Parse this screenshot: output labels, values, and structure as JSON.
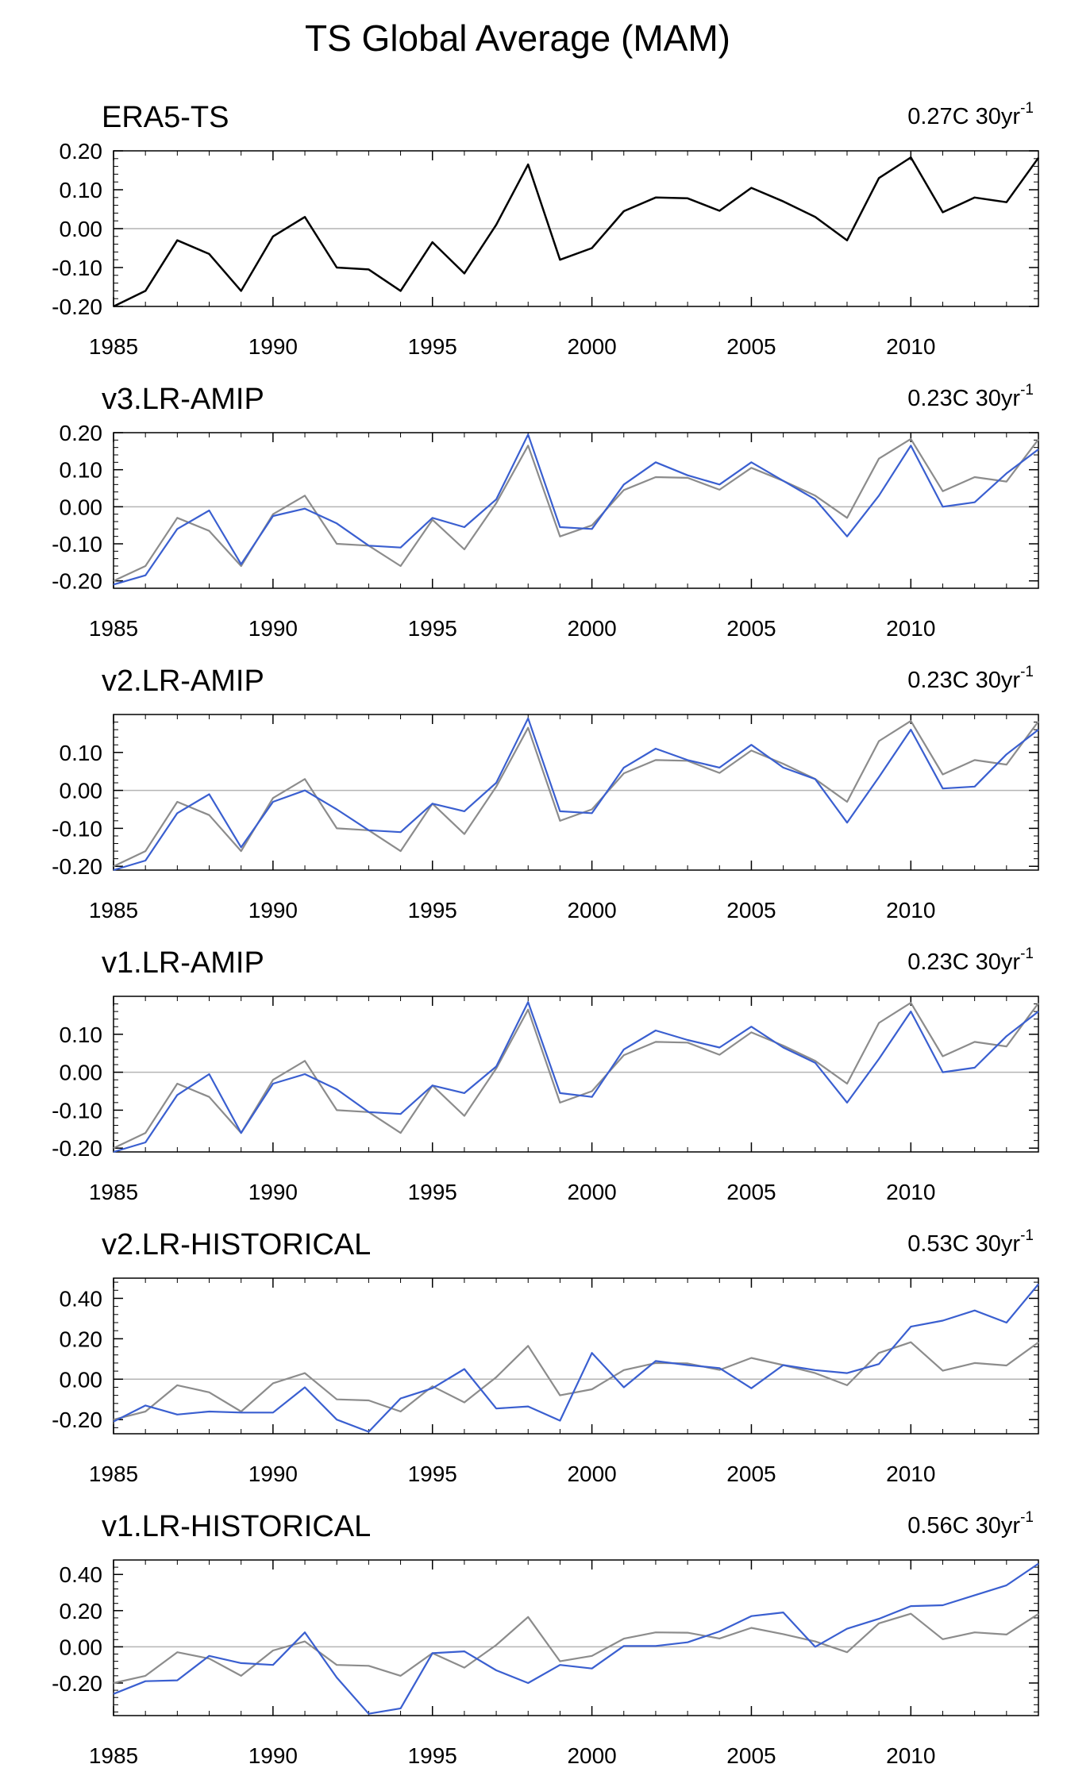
{
  "figure_title": "TS Global Average (MAM)",
  "colors": {
    "reference": "#000000",
    "reference_overlay": "#8c8c8c",
    "model": "#3a5fd0",
    "zero_line": "#b4b4b4",
    "axis": "#000000"
  },
  "chart_data": [
    {
      "type": "line",
      "title": "ERA5-TS",
      "trend_label": "0.27C 30yr",
      "trend_superscript": "-1",
      "ylim": [
        -0.2,
        0.2
      ],
      "yticks": [
        -0.2,
        -0.1,
        0.0,
        0.1,
        0.2
      ],
      "ytick_labels": [
        "-0.20",
        "-0.10",
        "0.00",
        "0.10",
        "0.20"
      ],
      "xlim": [
        1985,
        2014
      ],
      "xticks": [
        1985,
        1990,
        1995,
        2000,
        2005,
        2010
      ],
      "xtick_labels": [
        "1985",
        "1990",
        "1995",
        "2000",
        "2005",
        "2010"
      ],
      "x": [
        1985,
        1986,
        1987,
        1988,
        1989,
        1990,
        1991,
        1992,
        1993,
        1994,
        1995,
        1996,
        1997,
        1998,
        1999,
        2000,
        2001,
        2002,
        2003,
        2004,
        2005,
        2006,
        2007,
        2008,
        2009,
        2010,
        2011,
        2012,
        2013,
        2014
      ],
      "series": [
        {
          "name": "ERA5-TS",
          "role": "reference",
          "values": [
            -0.2,
            -0.16,
            -0.03,
            -0.065,
            -0.16,
            -0.02,
            0.03,
            -0.1,
            -0.105,
            -0.16,
            -0.035,
            -0.115,
            0.01,
            0.165,
            -0.08,
            -0.05,
            0.045,
            0.08,
            0.078,
            0.046,
            0.105,
            0.07,
            0.03,
            -0.03,
            0.13,
            0.183,
            0.042,
            0.08,
            0.068,
            0.182
          ]
        }
      ]
    },
    {
      "type": "line",
      "title": "v3.LR-AMIP",
      "trend_label": "0.23C 30yr",
      "trend_superscript": "-1",
      "ylim": [
        -0.22,
        0.2
      ],
      "yticks": [
        -0.2,
        -0.1,
        0.0,
        0.1,
        0.2
      ],
      "ytick_labels": [
        "-0.20",
        "-0.10",
        "0.00",
        "0.10",
        "0.20"
      ],
      "xlim": [
        1985,
        2014
      ],
      "xticks": [
        1985,
        1990,
        1995,
        2000,
        2005,
        2010
      ],
      "xtick_labels": [
        "1985",
        "1990",
        "1995",
        "2000",
        "2005",
        "2010"
      ],
      "x": [
        1985,
        1986,
        1987,
        1988,
        1989,
        1990,
        1991,
        1992,
        1993,
        1994,
        1995,
        1996,
        1997,
        1998,
        1999,
        2000,
        2001,
        2002,
        2003,
        2004,
        2005,
        2006,
        2007,
        2008,
        2009,
        2010,
        2011,
        2012,
        2013,
        2014
      ],
      "series": [
        {
          "name": "ERA5-TS",
          "role": "reference_overlay",
          "values": [
            -0.2,
            -0.16,
            -0.03,
            -0.065,
            -0.16,
            -0.02,
            0.03,
            -0.1,
            -0.105,
            -0.16,
            -0.035,
            -0.115,
            0.01,
            0.165,
            -0.08,
            -0.05,
            0.045,
            0.08,
            0.078,
            0.046,
            0.105,
            0.07,
            0.03,
            -0.03,
            0.13,
            0.183,
            0.042,
            0.08,
            0.068,
            0.182
          ]
        },
        {
          "name": "v3.LR-AMIP",
          "role": "model",
          "values": [
            -0.21,
            -0.185,
            -0.06,
            -0.01,
            -0.155,
            -0.025,
            -0.005,
            -0.045,
            -0.105,
            -0.11,
            -0.03,
            -0.055,
            0.02,
            0.195,
            -0.055,
            -0.06,
            0.06,
            0.12,
            0.085,
            0.06,
            0.12,
            0.07,
            0.02,
            -0.08,
            0.03,
            0.165,
            0.0,
            0.012,
            0.09,
            0.155
          ]
        }
      ]
    },
    {
      "type": "line",
      "title": "v2.LR-AMIP",
      "trend_label": "0.23C 30yr",
      "trend_superscript": "-1",
      "ylim": [
        -0.21,
        0.2
      ],
      "yticks": [
        -0.2,
        -0.1,
        0.0,
        0.1
      ],
      "ytick_labels": [
        "-0.20",
        "-0.10",
        "0.00",
        "0.10"
      ],
      "xlim": [
        1985,
        2014
      ],
      "xticks": [
        1985,
        1990,
        1995,
        2000,
        2005,
        2010
      ],
      "xtick_labels": [
        "1985",
        "1990",
        "1995",
        "2000",
        "2005",
        "2010"
      ],
      "x": [
        1985,
        1986,
        1987,
        1988,
        1989,
        1990,
        1991,
        1992,
        1993,
        1994,
        1995,
        1996,
        1997,
        1998,
        1999,
        2000,
        2001,
        2002,
        2003,
        2004,
        2005,
        2006,
        2007,
        2008,
        2009,
        2010,
        2011,
        2012,
        2013,
        2014
      ],
      "series": [
        {
          "name": "ERA5-TS",
          "role": "reference_overlay",
          "values": [
            -0.2,
            -0.16,
            -0.03,
            -0.065,
            -0.16,
            -0.02,
            0.03,
            -0.1,
            -0.105,
            -0.16,
            -0.035,
            -0.115,
            0.01,
            0.165,
            -0.08,
            -0.05,
            0.045,
            0.08,
            0.078,
            0.046,
            0.105,
            0.07,
            0.03,
            -0.03,
            0.13,
            0.183,
            0.042,
            0.08,
            0.068,
            0.182
          ]
        },
        {
          "name": "v2.LR-AMIP",
          "role": "model",
          "values": [
            -0.21,
            -0.185,
            -0.06,
            -0.01,
            -0.15,
            -0.03,
            0.0,
            -0.05,
            -0.105,
            -0.11,
            -0.035,
            -0.055,
            0.02,
            0.19,
            -0.055,
            -0.06,
            0.06,
            0.11,
            0.08,
            0.06,
            0.12,
            0.06,
            0.03,
            -0.085,
            0.035,
            0.16,
            0.005,
            0.01,
            0.095,
            0.16
          ]
        }
      ]
    },
    {
      "type": "line",
      "title": "v1.LR-AMIP",
      "trend_label": "0.23C 30yr",
      "trend_superscript": "-1",
      "ylim": [
        -0.21,
        0.2
      ],
      "yticks": [
        -0.2,
        -0.1,
        0.0,
        0.1
      ],
      "ytick_labels": [
        "-0.20",
        "-0.10",
        "0.00",
        "0.10"
      ],
      "xlim": [
        1985,
        2014
      ],
      "xticks": [
        1985,
        1990,
        1995,
        2000,
        2005,
        2010
      ],
      "xtick_labels": [
        "1985",
        "1990",
        "1995",
        "2000",
        "2005",
        "2010"
      ],
      "x": [
        1985,
        1986,
        1987,
        1988,
        1989,
        1990,
        1991,
        1992,
        1993,
        1994,
        1995,
        1996,
        1997,
        1998,
        1999,
        2000,
        2001,
        2002,
        2003,
        2004,
        2005,
        2006,
        2007,
        2008,
        2009,
        2010,
        2011,
        2012,
        2013,
        2014
      ],
      "series": [
        {
          "name": "ERA5-TS",
          "role": "reference_overlay",
          "values": [
            -0.2,
            -0.16,
            -0.03,
            -0.065,
            -0.16,
            -0.02,
            0.03,
            -0.1,
            -0.105,
            -0.16,
            -0.035,
            -0.115,
            0.01,
            0.165,
            -0.08,
            -0.05,
            0.045,
            0.08,
            0.078,
            0.046,
            0.105,
            0.07,
            0.03,
            -0.03,
            0.13,
            0.183,
            0.042,
            0.08,
            0.068,
            0.182
          ]
        },
        {
          "name": "v1.LR-AMIP",
          "role": "model",
          "values": [
            -0.21,
            -0.185,
            -0.06,
            -0.005,
            -0.16,
            -0.03,
            -0.005,
            -0.045,
            -0.105,
            -0.11,
            -0.035,
            -0.055,
            0.015,
            0.185,
            -0.055,
            -0.065,
            0.06,
            0.11,
            0.085,
            0.065,
            0.12,
            0.065,
            0.025,
            -0.08,
            0.035,
            0.16,
            0.0,
            0.012,
            0.095,
            0.16
          ]
        }
      ]
    },
    {
      "type": "line",
      "title": "v2.LR-HISTORICAL",
      "trend_label": "0.53C 30yr",
      "trend_superscript": "-1",
      "ylim": [
        -0.27,
        0.5
      ],
      "yticks": [
        -0.2,
        0.0,
        0.2,
        0.4
      ],
      "ytick_labels": [
        "-0.20",
        "0.00",
        "0.20",
        "0.40"
      ],
      "xlim": [
        1985,
        2014
      ],
      "xticks": [
        1985,
        1990,
        1995,
        2000,
        2005,
        2010
      ],
      "xtick_labels": [
        "1985",
        "1990",
        "1995",
        "2000",
        "2005",
        "2010"
      ],
      "x": [
        1985,
        1986,
        1987,
        1988,
        1989,
        1990,
        1991,
        1992,
        1993,
        1994,
        1995,
        1996,
        1997,
        1998,
        1999,
        2000,
        2001,
        2002,
        2003,
        2004,
        2005,
        2006,
        2007,
        2008,
        2009,
        2010,
        2011,
        2012,
        2013,
        2014
      ],
      "series": [
        {
          "name": "ERA5-TS",
          "role": "reference_overlay",
          "values": [
            -0.2,
            -0.16,
            -0.03,
            -0.065,
            -0.16,
            -0.02,
            0.03,
            -0.1,
            -0.105,
            -0.16,
            -0.035,
            -0.115,
            0.01,
            0.165,
            -0.08,
            -0.05,
            0.045,
            0.08,
            0.078,
            0.046,
            0.105,
            0.07,
            0.03,
            -0.03,
            0.13,
            0.183,
            0.042,
            0.08,
            0.068,
            0.182
          ]
        },
        {
          "name": "v2.LR-HISTORICAL",
          "role": "model",
          "values": [
            -0.21,
            -0.13,
            -0.175,
            -0.16,
            -0.165,
            -0.165,
            -0.04,
            -0.2,
            -0.26,
            -0.095,
            -0.045,
            0.05,
            -0.145,
            -0.135,
            -0.205,
            0.13,
            -0.04,
            0.09,
            0.07,
            0.055,
            -0.045,
            0.07,
            0.045,
            0.03,
            0.075,
            0.26,
            0.29,
            0.34,
            0.28,
            0.47
          ]
        }
      ]
    },
    {
      "type": "line",
      "title": "v1.LR-HISTORICAL",
      "trend_label": "0.56C 30yr",
      "trend_superscript": "-1",
      "ylim": [
        -0.38,
        0.48
      ],
      "yticks": [
        -0.2,
        0.0,
        0.2,
        0.4
      ],
      "ytick_labels": [
        "-0.20",
        "0.00",
        "0.20",
        "0.40"
      ],
      "xlim": [
        1985,
        2014
      ],
      "xticks": [
        1985,
        1990,
        1995,
        2000,
        2005,
        2010
      ],
      "xtick_labels": [
        "1985",
        "1990",
        "1995",
        "2000",
        "2005",
        "2010"
      ],
      "x": [
        1985,
        1986,
        1987,
        1988,
        1989,
        1990,
        1991,
        1992,
        1993,
        1994,
        1995,
        1996,
        1997,
        1998,
        1999,
        2000,
        2001,
        2002,
        2003,
        2004,
        2005,
        2006,
        2007,
        2008,
        2009,
        2010,
        2011,
        2012,
        2013,
        2014
      ],
      "series": [
        {
          "name": "ERA5-TS",
          "role": "reference_overlay",
          "values": [
            -0.2,
            -0.16,
            -0.03,
            -0.065,
            -0.16,
            -0.02,
            0.03,
            -0.1,
            -0.105,
            -0.16,
            -0.035,
            -0.115,
            0.01,
            0.165,
            -0.08,
            -0.05,
            0.045,
            0.08,
            0.078,
            0.046,
            0.105,
            0.07,
            0.03,
            -0.03,
            0.13,
            0.183,
            0.042,
            0.08,
            0.068,
            0.182
          ]
        },
        {
          "name": "v1.LR-HISTORICAL",
          "role": "model",
          "values": [
            -0.26,
            -0.19,
            -0.185,
            -0.05,
            -0.09,
            -0.1,
            0.08,
            -0.17,
            -0.37,
            -0.34,
            -0.035,
            -0.025,
            -0.13,
            -0.2,
            -0.1,
            -0.12,
            0.005,
            0.005,
            0.025,
            0.085,
            0.17,
            0.19,
            0.0,
            0.1,
            0.155,
            0.225,
            0.23,
            0.285,
            0.34,
            0.46
          ]
        }
      ]
    }
  ]
}
